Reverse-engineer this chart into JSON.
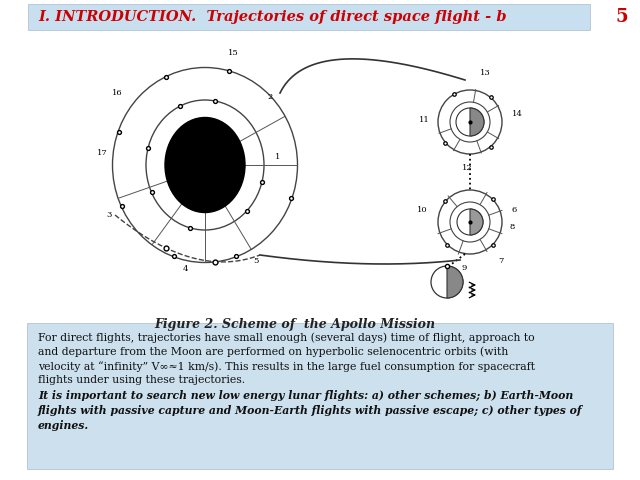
{
  "title": "I. INTRODUCTION.  Trajectories of direct space flight - b",
  "title_color": "#cc0000",
  "title_bg": "#c8dff0",
  "page_number": "5",
  "figure_caption": "Figure 2. Scheme of  the Apollo Mission",
  "body_bg": "#cce0ee",
  "bg_color": "#f0f0f0",
  "body_text_normal": "For direct flights, trajectories have small enough (several days) time of flight, approach to\nand departure from the Moon are performed on hyperbolic selenocentric orbits (with\nvelocity at “infinity” V∞≈1 km/s). This results in the large fuel consumption for spacecraft\nflights under using these trajectories.",
  "body_text_italic": "It is important to search new low energy lunar flights: a) other schemes; b) Earth-Moon\nflights with passive capture and Moon-Earth flights with passive escape; c) other types of\nengines."
}
